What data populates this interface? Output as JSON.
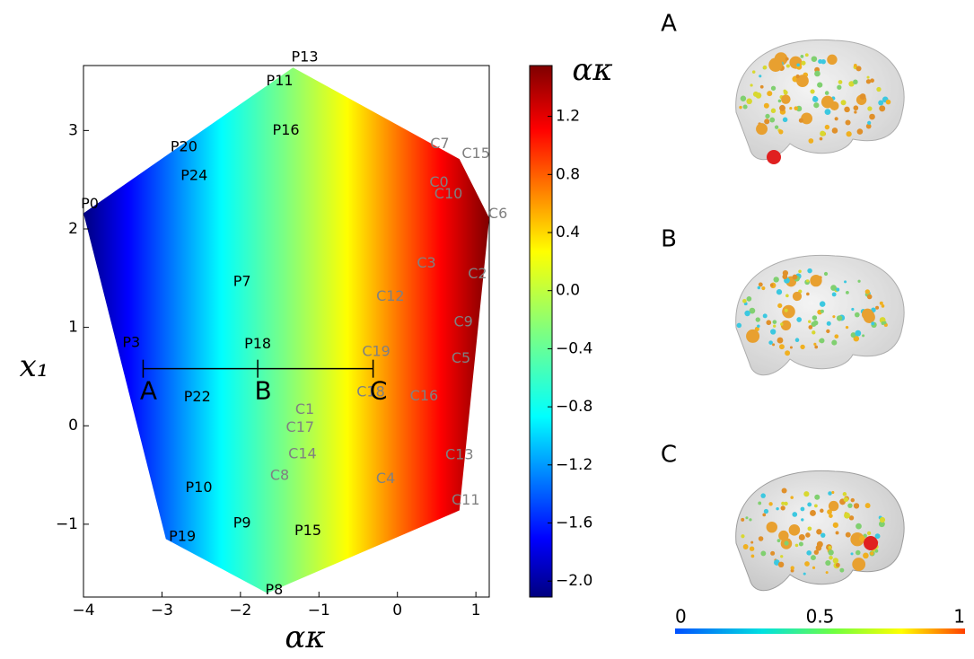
{
  "chart_data": {
    "type": "region",
    "xlabel": "ακ",
    "ylabel": "x₁",
    "xlim": [
      -4.0,
      1.17
    ],
    "ylim": [
      -1.74,
      3.66
    ],
    "xticks": [
      {
        "value": -4,
        "label": "−4"
      },
      {
        "value": -3,
        "label": "−3"
      },
      {
        "value": -2,
        "label": "−2"
      },
      {
        "value": -1,
        "label": "−1"
      },
      0,
      1
    ],
    "yticks": [
      {
        "value": -1,
        "label": "−1"
      },
      0,
      1,
      2,
      3
    ],
    "region": {
      "x": [
        -4.0,
        -1.33,
        0.79,
        1.17,
        0.79,
        -1.66,
        -2.95
      ],
      "y": [
        2.16,
        3.64,
        2.71,
        2.11,
        -0.86,
        -1.7,
        -1.15
      ]
    },
    "series": [
      {
        "color": "#000000",
        "points": [
          {
            "label": "P13",
            "x": -1.18,
            "y": 3.74
          },
          {
            "label": "P11",
            "x": -1.5,
            "y": 3.5
          },
          {
            "label": "P16",
            "x": -1.42,
            "y": 3.0
          },
          {
            "label": "P20",
            "x": -2.72,
            "y": 2.83
          },
          {
            "label": "P24",
            "x": -2.59,
            "y": 2.54
          },
          {
            "label": "P0",
            "x": -3.92,
            "y": 2.25
          },
          {
            "label": "P7",
            "x": -1.98,
            "y": 1.46
          },
          {
            "label": "P3",
            "x": -3.39,
            "y": 0.84
          },
          {
            "label": "P18",
            "x": -1.78,
            "y": 0.83
          },
          {
            "label": "P22",
            "x": -2.55,
            "y": 0.29
          },
          {
            "label": "P10",
            "x": -2.53,
            "y": -0.63
          },
          {
            "label": "P9",
            "x": -1.98,
            "y": -0.99
          },
          {
            "label": "P15",
            "x": -1.14,
            "y": -1.07
          },
          {
            "label": "P19",
            "x": -2.74,
            "y": -1.13
          },
          {
            "label": "P8",
            "x": -1.57,
            "y": -1.67
          }
        ]
      },
      {
        "color": "#808080",
        "points": [
          {
            "label": "C7",
            "x": 0.54,
            "y": 2.86
          },
          {
            "label": "C15",
            "x": 1.0,
            "y": 2.76
          },
          {
            "label": "C0",
            "x": 0.53,
            "y": 2.47
          },
          {
            "label": "C10",
            "x": 0.65,
            "y": 2.35
          },
          {
            "label": "C6",
            "x": 1.28,
            "y": 2.15
          },
          {
            "label": "C3",
            "x": 0.37,
            "y": 1.65
          },
          {
            "label": "C2",
            "x": 1.02,
            "y": 1.54
          },
          {
            "label": "C12",
            "x": -0.09,
            "y": 1.31
          },
          {
            "label": "C9",
            "x": 0.84,
            "y": 1.05
          },
          {
            "label": "C19",
            "x": -0.27,
            "y": 0.75
          },
          {
            "label": "C5",
            "x": 0.81,
            "y": 0.68
          },
          {
            "label": "C18",
            "x": -0.34,
            "y": 0.34
          },
          {
            "label": "C16",
            "x": 0.34,
            "y": 0.3
          },
          {
            "label": "C1",
            "x": -1.18,
            "y": 0.16
          },
          {
            "label": "C17",
            "x": -1.24,
            "y": -0.02
          },
          {
            "label": "C14",
            "x": -1.21,
            "y": -0.29
          },
          {
            "label": "C13",
            "x": 0.79,
            "y": -0.3
          },
          {
            "label": "C8",
            "x": -1.5,
            "y": -0.51
          },
          {
            "label": "C4",
            "x": -0.15,
            "y": -0.54
          },
          {
            "label": "C11",
            "x": 0.87,
            "y": -0.76
          }
        ]
      }
    ],
    "segment": {
      "y": 0.58,
      "markers": [
        {
          "label": "A",
          "x": -3.24
        },
        {
          "label": "B",
          "x": -1.78
        },
        {
          "label": "C",
          "x": -0.31
        }
      ]
    },
    "colorbar": {
      "label": "ακ",
      "lim": [
        -2.11,
        1.55
      ],
      "ticks": [
        {
          "value": 1.2,
          "label": "1.2"
        },
        {
          "value": 0.8,
          "label": "0.8"
        },
        {
          "value": 0.4,
          "label": "0.4"
        },
        {
          "value": 0.0,
          "label": "0.0"
        },
        {
          "value": -0.4,
          "label": "−0.4"
        },
        {
          "value": -0.8,
          "label": "−0.8"
        },
        {
          "value": -1.2,
          "label": "−1.2"
        },
        {
          "value": -1.6,
          "label": "−1.6"
        },
        {
          "value": -2.0,
          "label": "−2.0"
        }
      ]
    },
    "panels": [
      "A",
      "B",
      "C"
    ],
    "brain_colorbar": {
      "ticks": [
        0,
        0.5,
        1
      ]
    }
  }
}
